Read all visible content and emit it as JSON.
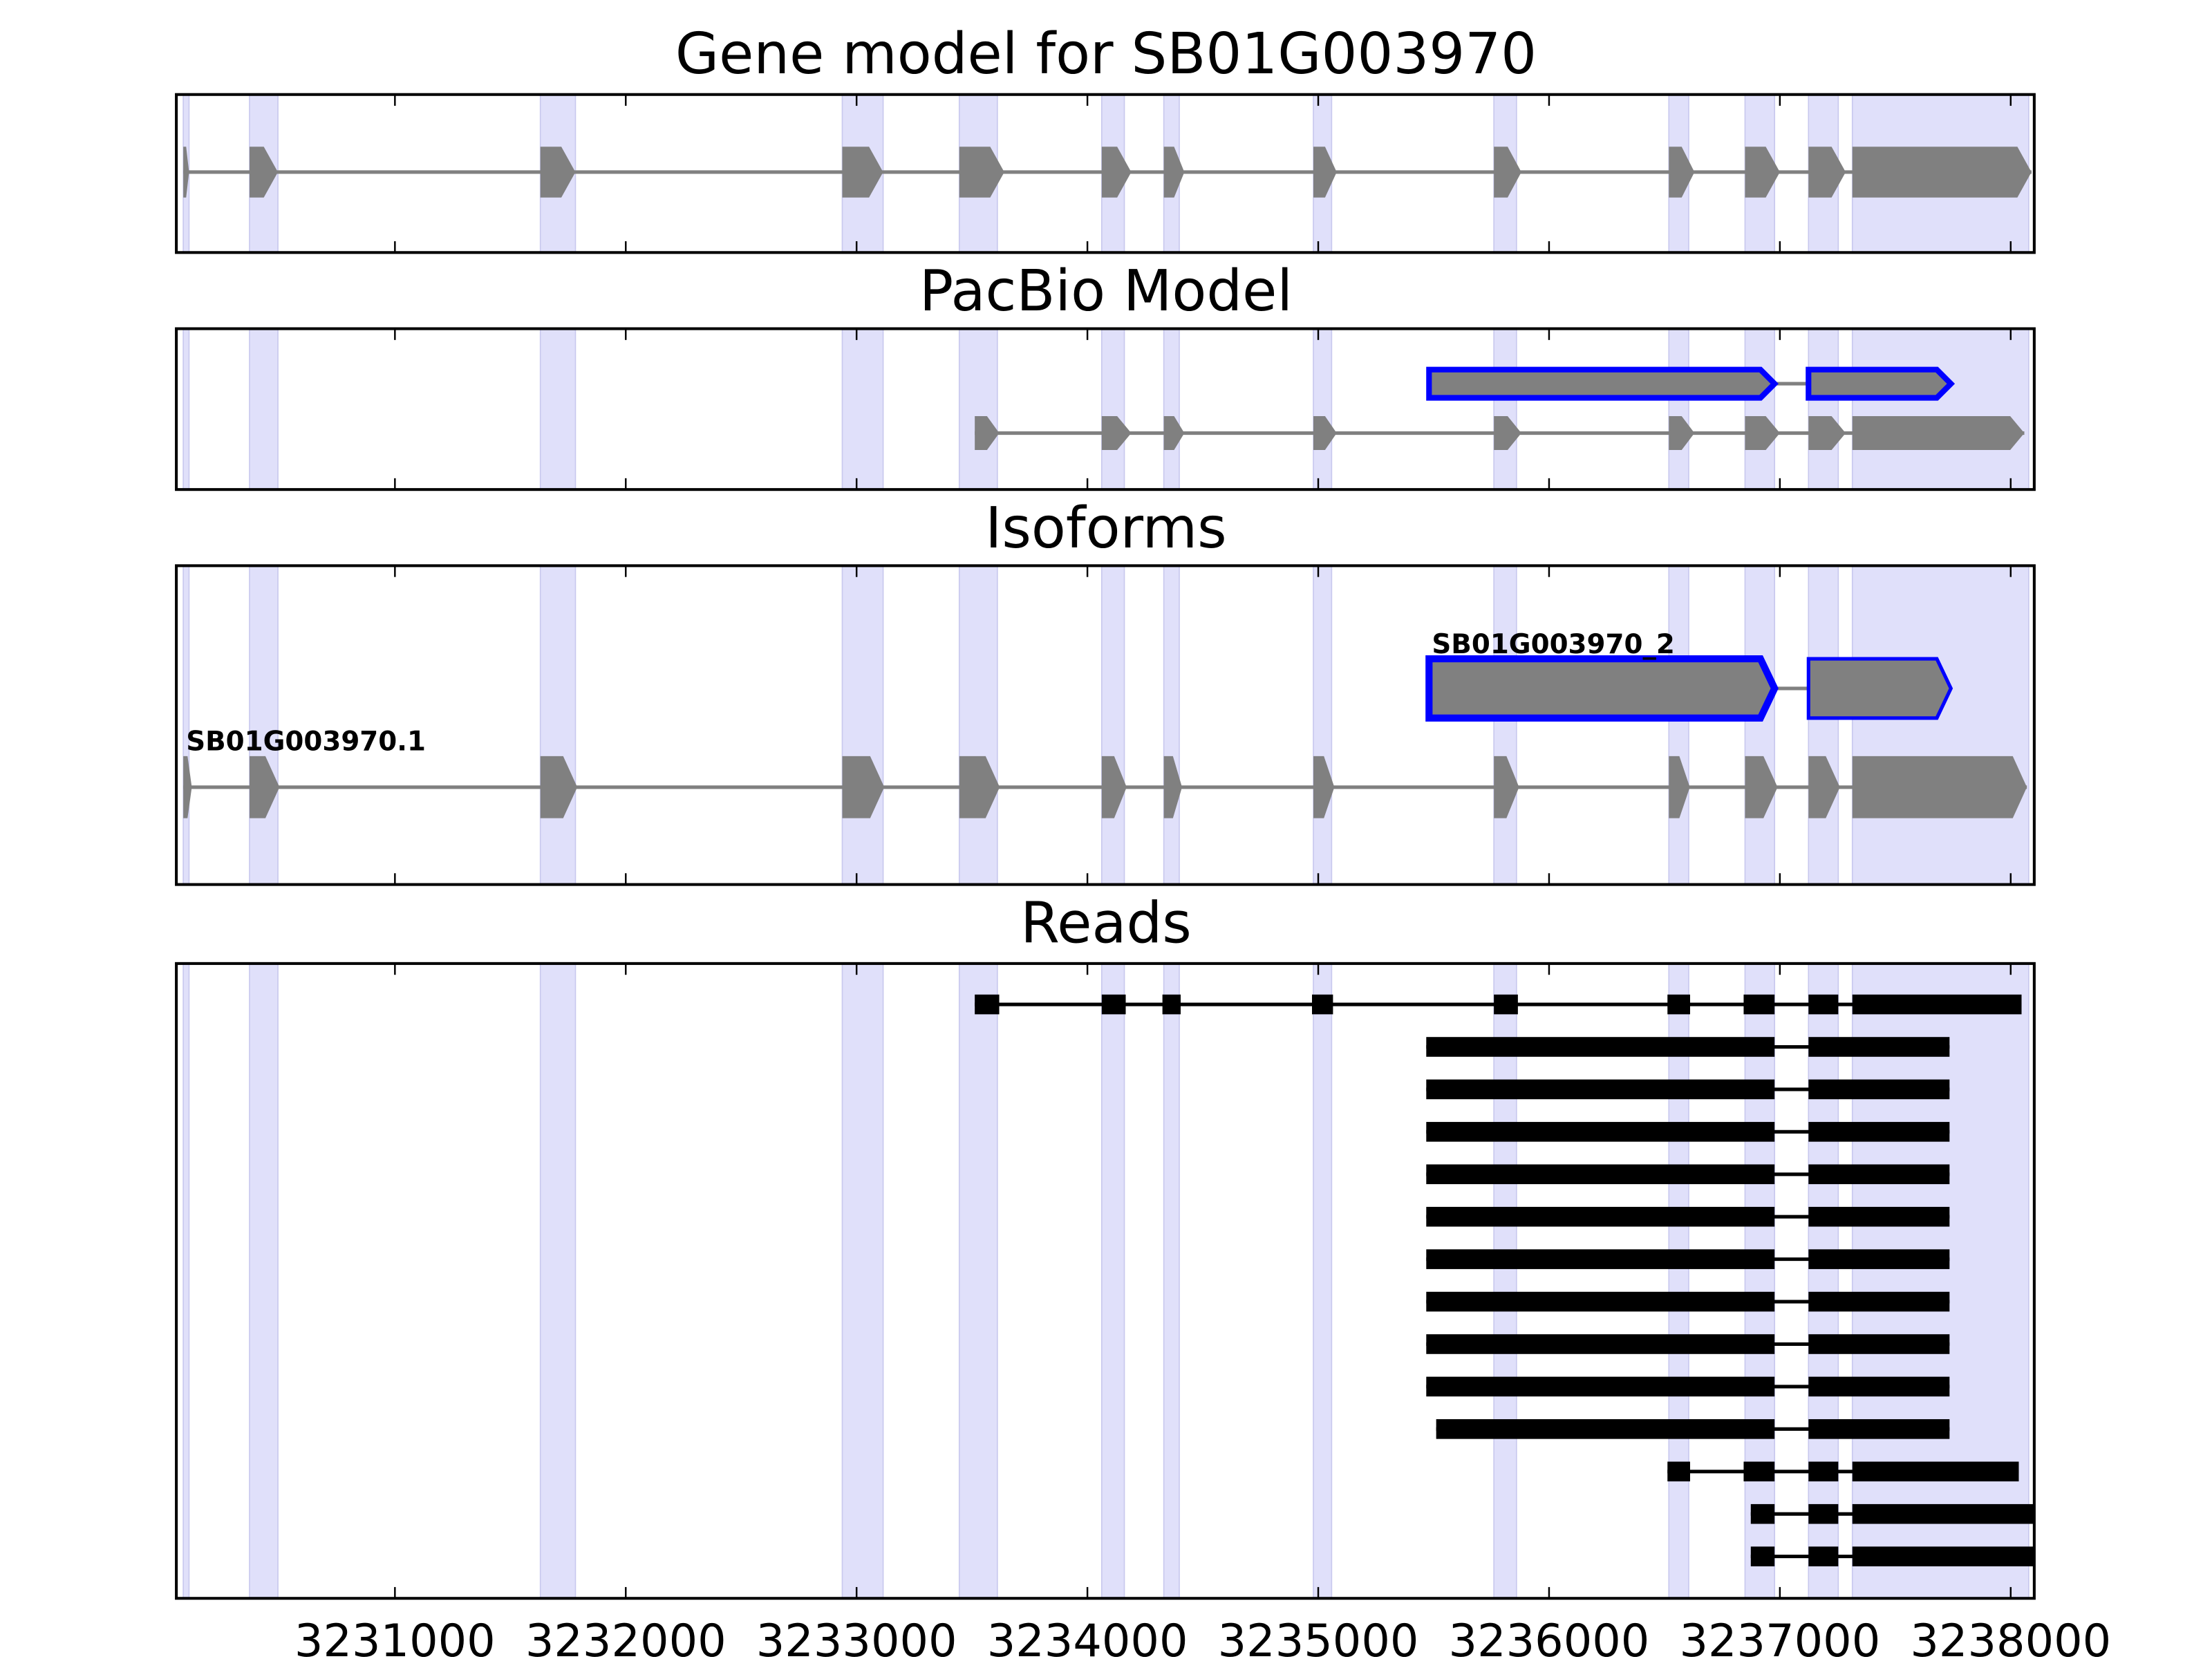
{
  "chart_data": {
    "type": "gene-track",
    "xlim": [
      3230053,
      3238102
    ],
    "xticks": [
      3231000,
      3232000,
      3233000,
      3234000,
      3235000,
      3236000,
      3237000,
      3238000
    ],
    "xtick_labels": [
      "3231000",
      "3232000",
      "3233000",
      "3234000",
      "3235000",
      "3236000",
      "3237000",
      "3238000"
    ],
    "highlight_color": "#e0e0fa",
    "exon_color": "#808080",
    "novel_color": "#0000ff",
    "read_color": "#000000",
    "highlight_regions": [
      [
        3230083,
        3230108
      ],
      [
        3230370,
        3230493
      ],
      [
        3231630,
        3231782
      ],
      [
        3232938,
        3233115
      ],
      [
        3233445,
        3233610
      ],
      [
        3234062,
        3234160
      ],
      [
        3234331,
        3234398
      ],
      [
        3234979,
        3235058
      ],
      [
        3235761,
        3235859
      ],
      [
        3236519,
        3236605
      ],
      [
        3236849,
        3236977
      ],
      [
        3237124,
        3237253
      ],
      [
        3237314,
        3238078
      ]
    ],
    "panels": [
      {
        "title": "Gene model for SB01G003970",
        "models": [
          {
            "label": "",
            "novel": false,
            "exons": [
              [
                3230083,
                3230108
              ],
              [
                3230370,
                3230493
              ],
              [
                3231630,
                3231782
              ],
              [
                3232938,
                3233115
              ],
              [
                3233445,
                3233640
              ],
              [
                3234062,
                3234190
              ],
              [
                3234331,
                3234420
              ],
              [
                3234979,
                3235080
              ],
              [
                3235761,
                3235880
              ],
              [
                3236519,
                3236630
              ],
              [
                3236849,
                3237000
              ],
              [
                3237124,
                3237285
              ],
              [
                3237314,
                3238090
              ]
            ]
          }
        ]
      },
      {
        "title": "PacBio Model",
        "models": [
          {
            "label": "",
            "novel": true,
            "exons": [
              [
                3235480,
                3236977
              ],
              [
                3237124,
                3237741
              ]
            ]
          },
          {
            "label": "",
            "novel": false,
            "exons": [
              [
                3233512,
                3233618
              ],
              [
                3234062,
                3234190
              ],
              [
                3234331,
                3234420
              ],
              [
                3234979,
                3235080
              ],
              [
                3235761,
                3235880
              ],
              [
                3236519,
                3236630
              ],
              [
                3236849,
                3237000
              ],
              [
                3237124,
                3237285
              ],
              [
                3237314,
                3238059
              ]
            ]
          }
        ]
      },
      {
        "title": "Isoforms",
        "models": [
          {
            "label": "SB01G003970_2",
            "novel": true,
            "exons": [
              [
                3235480,
                3236977
              ],
              [
                3237124,
                3237741
              ]
            ]
          },
          {
            "label": "SB01G003970.1",
            "novel": false,
            "exons": [
              [
                3230083,
                3230120
              ],
              [
                3230370,
                3230500
              ],
              [
                3231630,
                3231790
              ],
              [
                3232938,
                3233120
              ],
              [
                3233445,
                3233620
              ],
              [
                3234062,
                3234170
              ],
              [
                3234331,
                3234410
              ],
              [
                3234979,
                3235070
              ],
              [
                3235761,
                3235870
              ],
              [
                3236519,
                3236610
              ],
              [
                3236849,
                3236990
              ],
              [
                3237124,
                3237260
              ],
              [
                3237314,
                3238070
              ]
            ]
          }
        ]
      },
      {
        "title": "Reads",
        "reads": [
          [
            [
              3233512,
              3233618
            ],
            [
              3234062,
              3234166
            ],
            [
              3234325,
              3234404
            ],
            [
              3234973,
              3235064
            ],
            [
              3235761,
              3235865
            ],
            [
              3236513,
              3236611
            ],
            [
              3236843,
              3236977
            ],
            [
              3237124,
              3237253
            ],
            [
              3237314,
              3238047
            ]
          ],
          [
            [
              3235468,
              3236977
            ],
            [
              3237124,
              3237735
            ]
          ],
          [
            [
              3235468,
              3236977
            ],
            [
              3237124,
              3237735
            ]
          ],
          [
            [
              3235468,
              3236977
            ],
            [
              3237124,
              3237735
            ]
          ],
          [
            [
              3235468,
              3236977
            ],
            [
              3237124,
              3237735
            ]
          ],
          [
            [
              3235468,
              3236977
            ],
            [
              3237124,
              3237735
            ]
          ],
          [
            [
              3235468,
              3236977
            ],
            [
              3237124,
              3237735
            ]
          ],
          [
            [
              3235468,
              3236977
            ],
            [
              3237124,
              3237735
            ]
          ],
          [
            [
              3235468,
              3236977
            ],
            [
              3237124,
              3237735
            ]
          ],
          [
            [
              3235468,
              3236977
            ],
            [
              3237124,
              3237735
            ]
          ],
          [
            [
              3235511,
              3236977
            ],
            [
              3237124,
              3237735
            ]
          ],
          [
            [
              3236513,
              3236611
            ],
            [
              3236843,
              3236977
            ],
            [
              3237124,
              3237253
            ],
            [
              3237314,
              3238035
            ]
          ],
          [
            [
              3236874,
              3236977
            ],
            [
              3237124,
              3237253
            ],
            [
              3237314,
              3238102
            ]
          ],
          [
            [
              3236874,
              3236977
            ],
            [
              3237124,
              3237253
            ],
            [
              3237314,
              3238102
            ]
          ]
        ]
      }
    ]
  }
}
